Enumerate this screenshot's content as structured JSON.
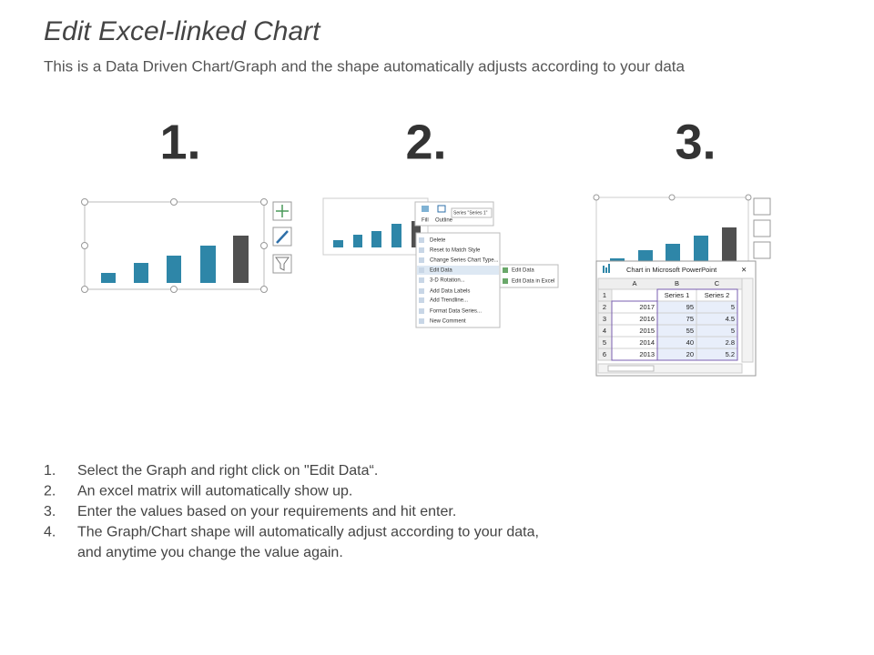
{
  "header": {
    "title": "Edit Excel-linked Chart",
    "subtitle": "This is a Data Driven Chart/Graph and the shape automatically adjusts according to your data"
  },
  "step_numbers": [
    "1.",
    "2.",
    "3."
  ],
  "toolbar": {
    "fill": "Fill",
    "outline": "Outline",
    "series": "Series \"Series 1\""
  },
  "context_menu": [
    "Delete",
    "Reset to Match Style",
    "Change Series Chart Type...",
    "Edit Data",
    "3-D Rotation...",
    "Add Data Labels",
    "Add Trendline...",
    "Format Data Series...",
    "New Comment"
  ],
  "submenu": [
    "Edit Data",
    "Edit Data in Excel"
  ],
  "excel": {
    "title": "Chart in Microsoft PowerPoint",
    "columns": [
      "A",
      "B",
      "C"
    ],
    "header_row": {
      "row": 1,
      "cells": [
        "Series 1",
        "Series 2"
      ]
    },
    "rows": [
      [
        2,
        2017,
        95,
        5
      ],
      [
        3,
        2016,
        75,
        4.5
      ],
      [
        4,
        2015,
        55,
        5
      ],
      [
        5,
        2014,
        40,
        2.8
      ],
      [
        6,
        2013,
        20,
        5.2
      ]
    ]
  },
  "instructions": [
    {
      "number": "1.",
      "lines": [
        "Select the Graph and right click on \"Edit Data“."
      ]
    },
    {
      "number": "2.",
      "lines": [
        "An excel matrix will automatically show up."
      ]
    },
    {
      "number": "3.",
      "lines": [
        "Enter the values based on your requirements and hit enter."
      ]
    },
    {
      "number": "4.",
      "lines": [
        "The Graph/Chart shape will automatically adjust according to your data,",
        "and anytime you change the value again."
      ]
    }
  ]
}
